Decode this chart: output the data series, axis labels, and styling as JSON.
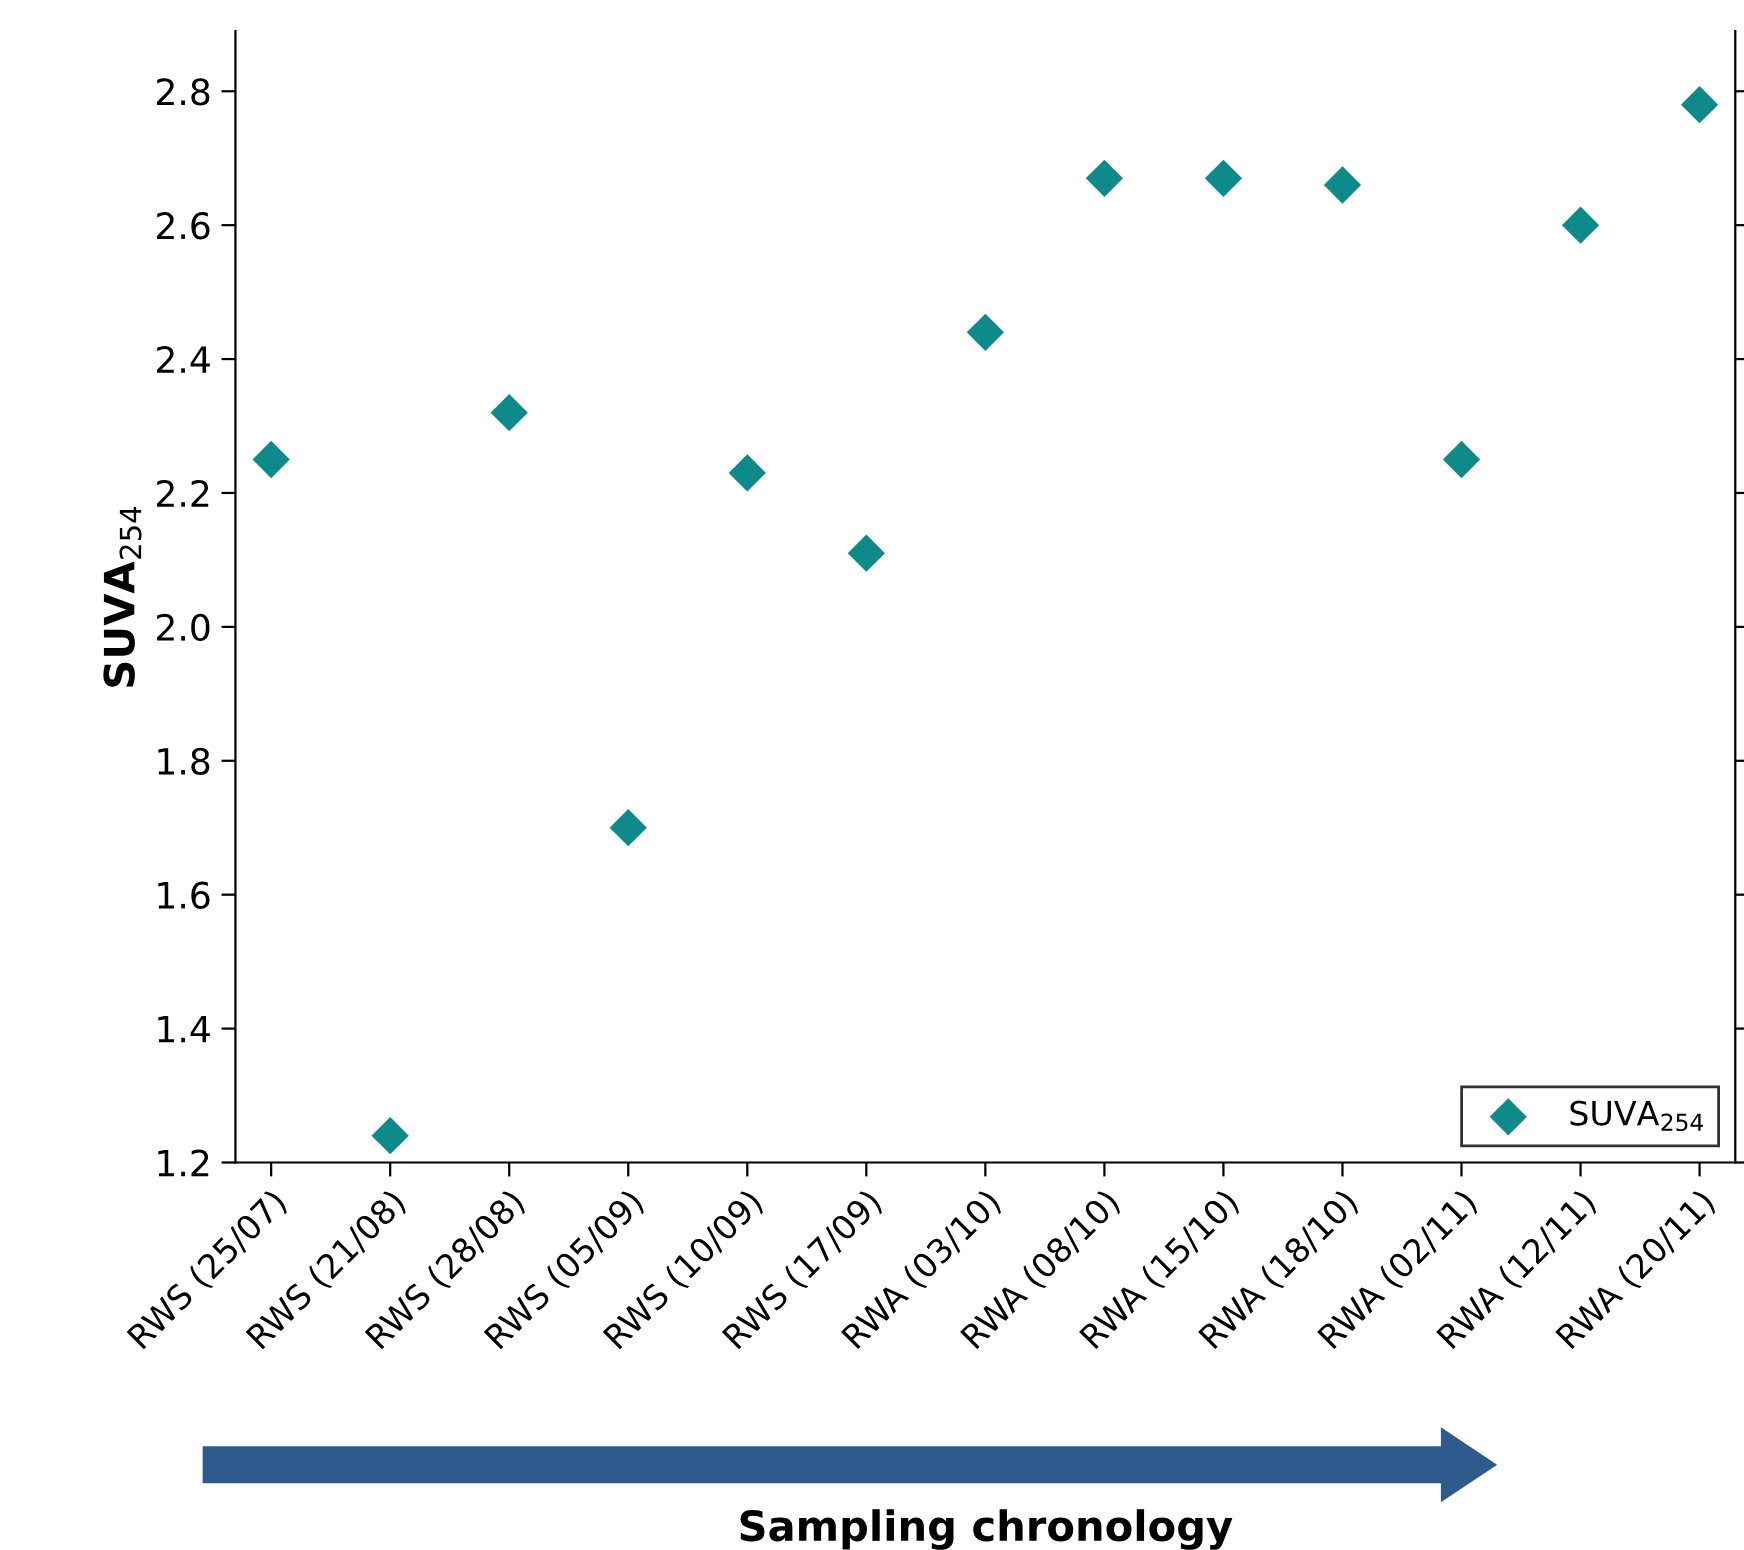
{
  "chart_data": {
    "type": "scatter",
    "categories": [
      "RWS (25/07)",
      "RWS (21/08)",
      "RWS (28/08)",
      "RWS (05/09)",
      "RWS (10/09)",
      "RWS (17/09)",
      "RWA (03/10)",
      "RWA (08/10)",
      "RWA (15/10)",
      "RWA (18/10)",
      "RWA (02/11)",
      "RWA (12/11)",
      "RWA (20/11)"
    ],
    "series": [
      {
        "name": "SUVA$_{254}$",
        "color": "#0f8a8a",
        "values": [
          2.25,
          1.24,
          2.32,
          1.7,
          2.23,
          2.11,
          2.44,
          2.67,
          2.67,
          2.66,
          2.25,
          2.6,
          2.78
        ]
      }
    ],
    "xlabel": "Sampling chronology",
    "ylabel": "SUVA$_{254}$",
    "ylim": [
      1.2,
      2.89
    ],
    "yticks": [
      1.2,
      1.4,
      1.6,
      1.8,
      {
        "value": 2,
        "label": "2.0"
      },
      2.2,
      2.4,
      2.6,
      2.8
    ],
    "marker": "diamond",
    "legend": "bottom right",
    "grid": false
  }
}
